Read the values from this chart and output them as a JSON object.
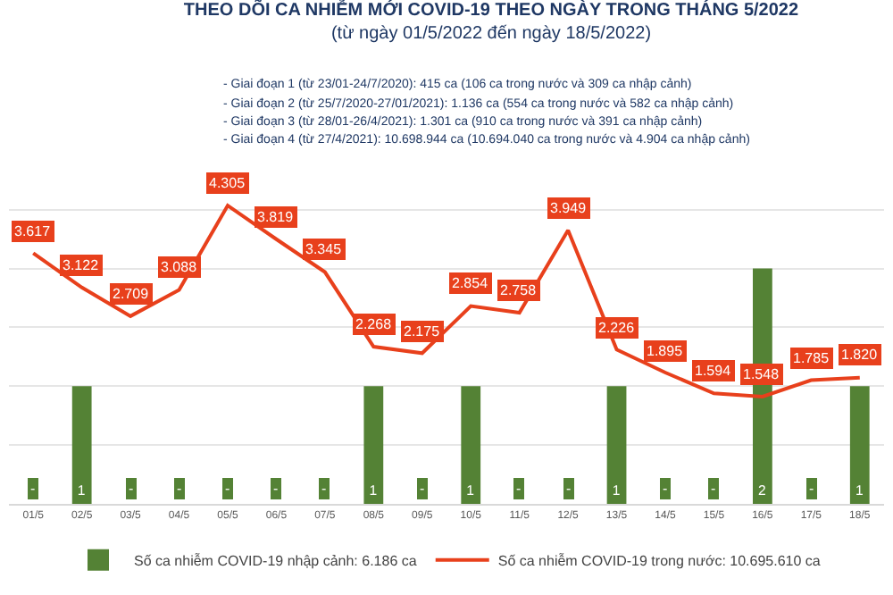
{
  "chart_data": {
    "type": "bar",
    "title": "THEO DÕI CA NHIỄM MỚI COVID-19 THEO NGÀY TRONG THÁNG 5/2022",
    "subtitle": "(từ ngày 01/5/2022 đến ngày 18/5/2022)",
    "annotations": [
      "- Giai đoạn 1 (từ 23/01-24/7/2020): 415 ca (106 ca trong nước và 309 ca nhập cảnh)",
      "- Giai đoạn 2 (từ 25/7/2020-27/01/2021): 1.136 ca (554 ca trong nước và 582 ca nhập cảnh)",
      "- Giai đoạn 3 (từ 28/01-26/4/2021): 1.301 ca (910 ca trong nước và 391 ca nhập cảnh)",
      "- Giai đoạn 4 (từ 27/4/2021): 10.698.944 ca (10.694.040 ca trong nước và 4.904 ca nhập cảnh)"
    ],
    "categories": [
      "01/5",
      "02/5",
      "03/5",
      "04/5",
      "05/5",
      "06/5",
      "07/5",
      "08/5",
      "09/5",
      "10/5",
      "11/5",
      "12/5",
      "13/5",
      "14/5",
      "15/5",
      "16/5",
      "17/5",
      "18/5"
    ],
    "series": [
      {
        "name": "Số ca nhiễm COVID-19 nhập cảnh: 6.186 ca",
        "color": "#548235",
        "values": [
          0,
          1,
          0,
          0,
          0,
          0,
          0,
          1,
          0,
          1,
          0,
          0,
          1,
          0,
          0,
          2,
          0,
          1
        ],
        "value_labels": [
          "-",
          "1",
          "-",
          "-",
          "-",
          "-",
          "-",
          "1",
          "-",
          "1",
          "-",
          "-",
          "1",
          "-",
          "-",
          "2",
          "-",
          "1"
        ]
      },
      {
        "name": "Số ca nhiễm COVID-19 trong nước: 10.695.610 ca",
        "type": "line",
        "axis": "y2",
        "color": "#e8401c",
        "values": [
          3617,
          3122,
          2709,
          3088,
          4305,
          3819,
          3345,
          2268,
          2175,
          2854,
          2758,
          3949,
          2226,
          1895,
          1594,
          1548,
          1785,
          1820
        ],
        "value_labels": [
          "3.617",
          "3.122",
          "2.709",
          "3.088",
          "4.305",
          "3.819",
          "3.345",
          "2.268",
          "2.175",
          "2.854",
          "2.758",
          "3.949",
          "2.226",
          "1.895",
          "1.594",
          "1.548",
          "1.785",
          "1.820"
        ]
      }
    ],
    "grid": "y",
    "legend": "bottom",
    "marker": "none",
    "line_style": "solid",
    "tick_labels": "x"
  }
}
